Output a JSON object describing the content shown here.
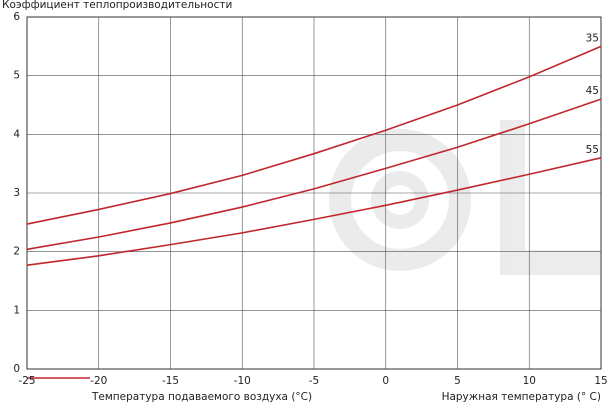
{
  "chart_data": {
    "type": "line",
    "title": "Коэффициент теплопроизводительности",
    "x_label": "Наружная температура (° C)",
    "legend_title": "Температура подаваемого воздуха (°C)",
    "x": [
      -25,
      -20,
      -15,
      -10,
      -5,
      0,
      5,
      10,
      15
    ],
    "series": [
      {
        "name": "35",
        "color": "#c0272d",
        "values": [
          2.47,
          2.72,
          2.99,
          3.3,
          3.67,
          4.07,
          4.5,
          4.98,
          5.5
        ]
      },
      {
        "name": "45",
        "color": "#c0272d",
        "values": [
          2.04,
          2.25,
          2.49,
          2.76,
          3.07,
          3.42,
          3.78,
          4.18,
          4.6
        ]
      },
      {
        "name": "55",
        "color": "#c0272d",
        "values": [
          1.77,
          1.93,
          2.12,
          2.32,
          2.55,
          2.79,
          3.05,
          3.32,
          3.6
        ]
      }
    ],
    "xlim": [
      -25,
      15
    ],
    "ylim": [
      0,
      6
    ],
    "xticks": [
      -25,
      -20,
      -15,
      -10,
      -5,
      0,
      5,
      10,
      15
    ],
    "yticks": [
      0,
      1,
      2,
      3,
      4,
      5,
      6
    ],
    "grid": true
  }
}
